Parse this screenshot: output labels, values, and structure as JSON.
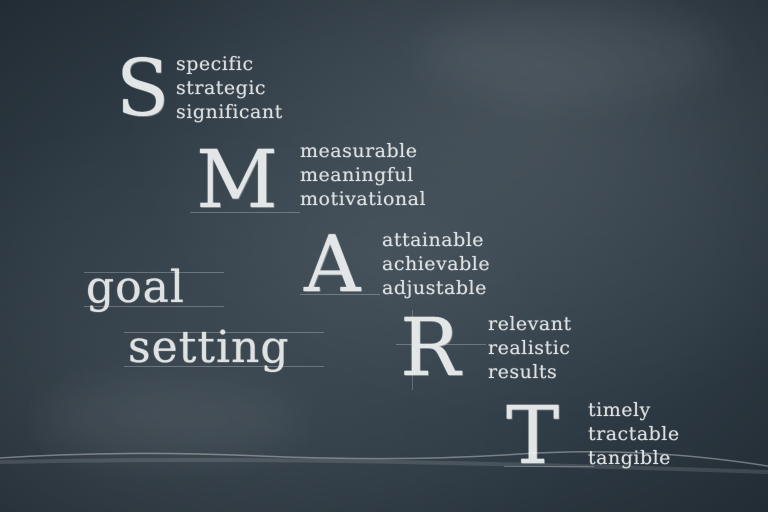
{
  "letters": {
    "s": "S",
    "m": "M",
    "a": "A",
    "r": "R",
    "t": "T"
  },
  "words": {
    "s": [
      "specific",
      "strategic",
      "significant"
    ],
    "m": [
      "measurable",
      "meaningful",
      "motivational"
    ],
    "a": [
      "attainable",
      "achievable",
      "adjustable"
    ],
    "r": [
      "relevant",
      "realistic",
      "results"
    ],
    "t": [
      "timely",
      "tractable",
      "tangible"
    ]
  },
  "phrase": {
    "line1": "goal",
    "line2": "setting"
  },
  "colors": {
    "board": "#2f3b45",
    "chalk": "#eef0f0"
  }
}
